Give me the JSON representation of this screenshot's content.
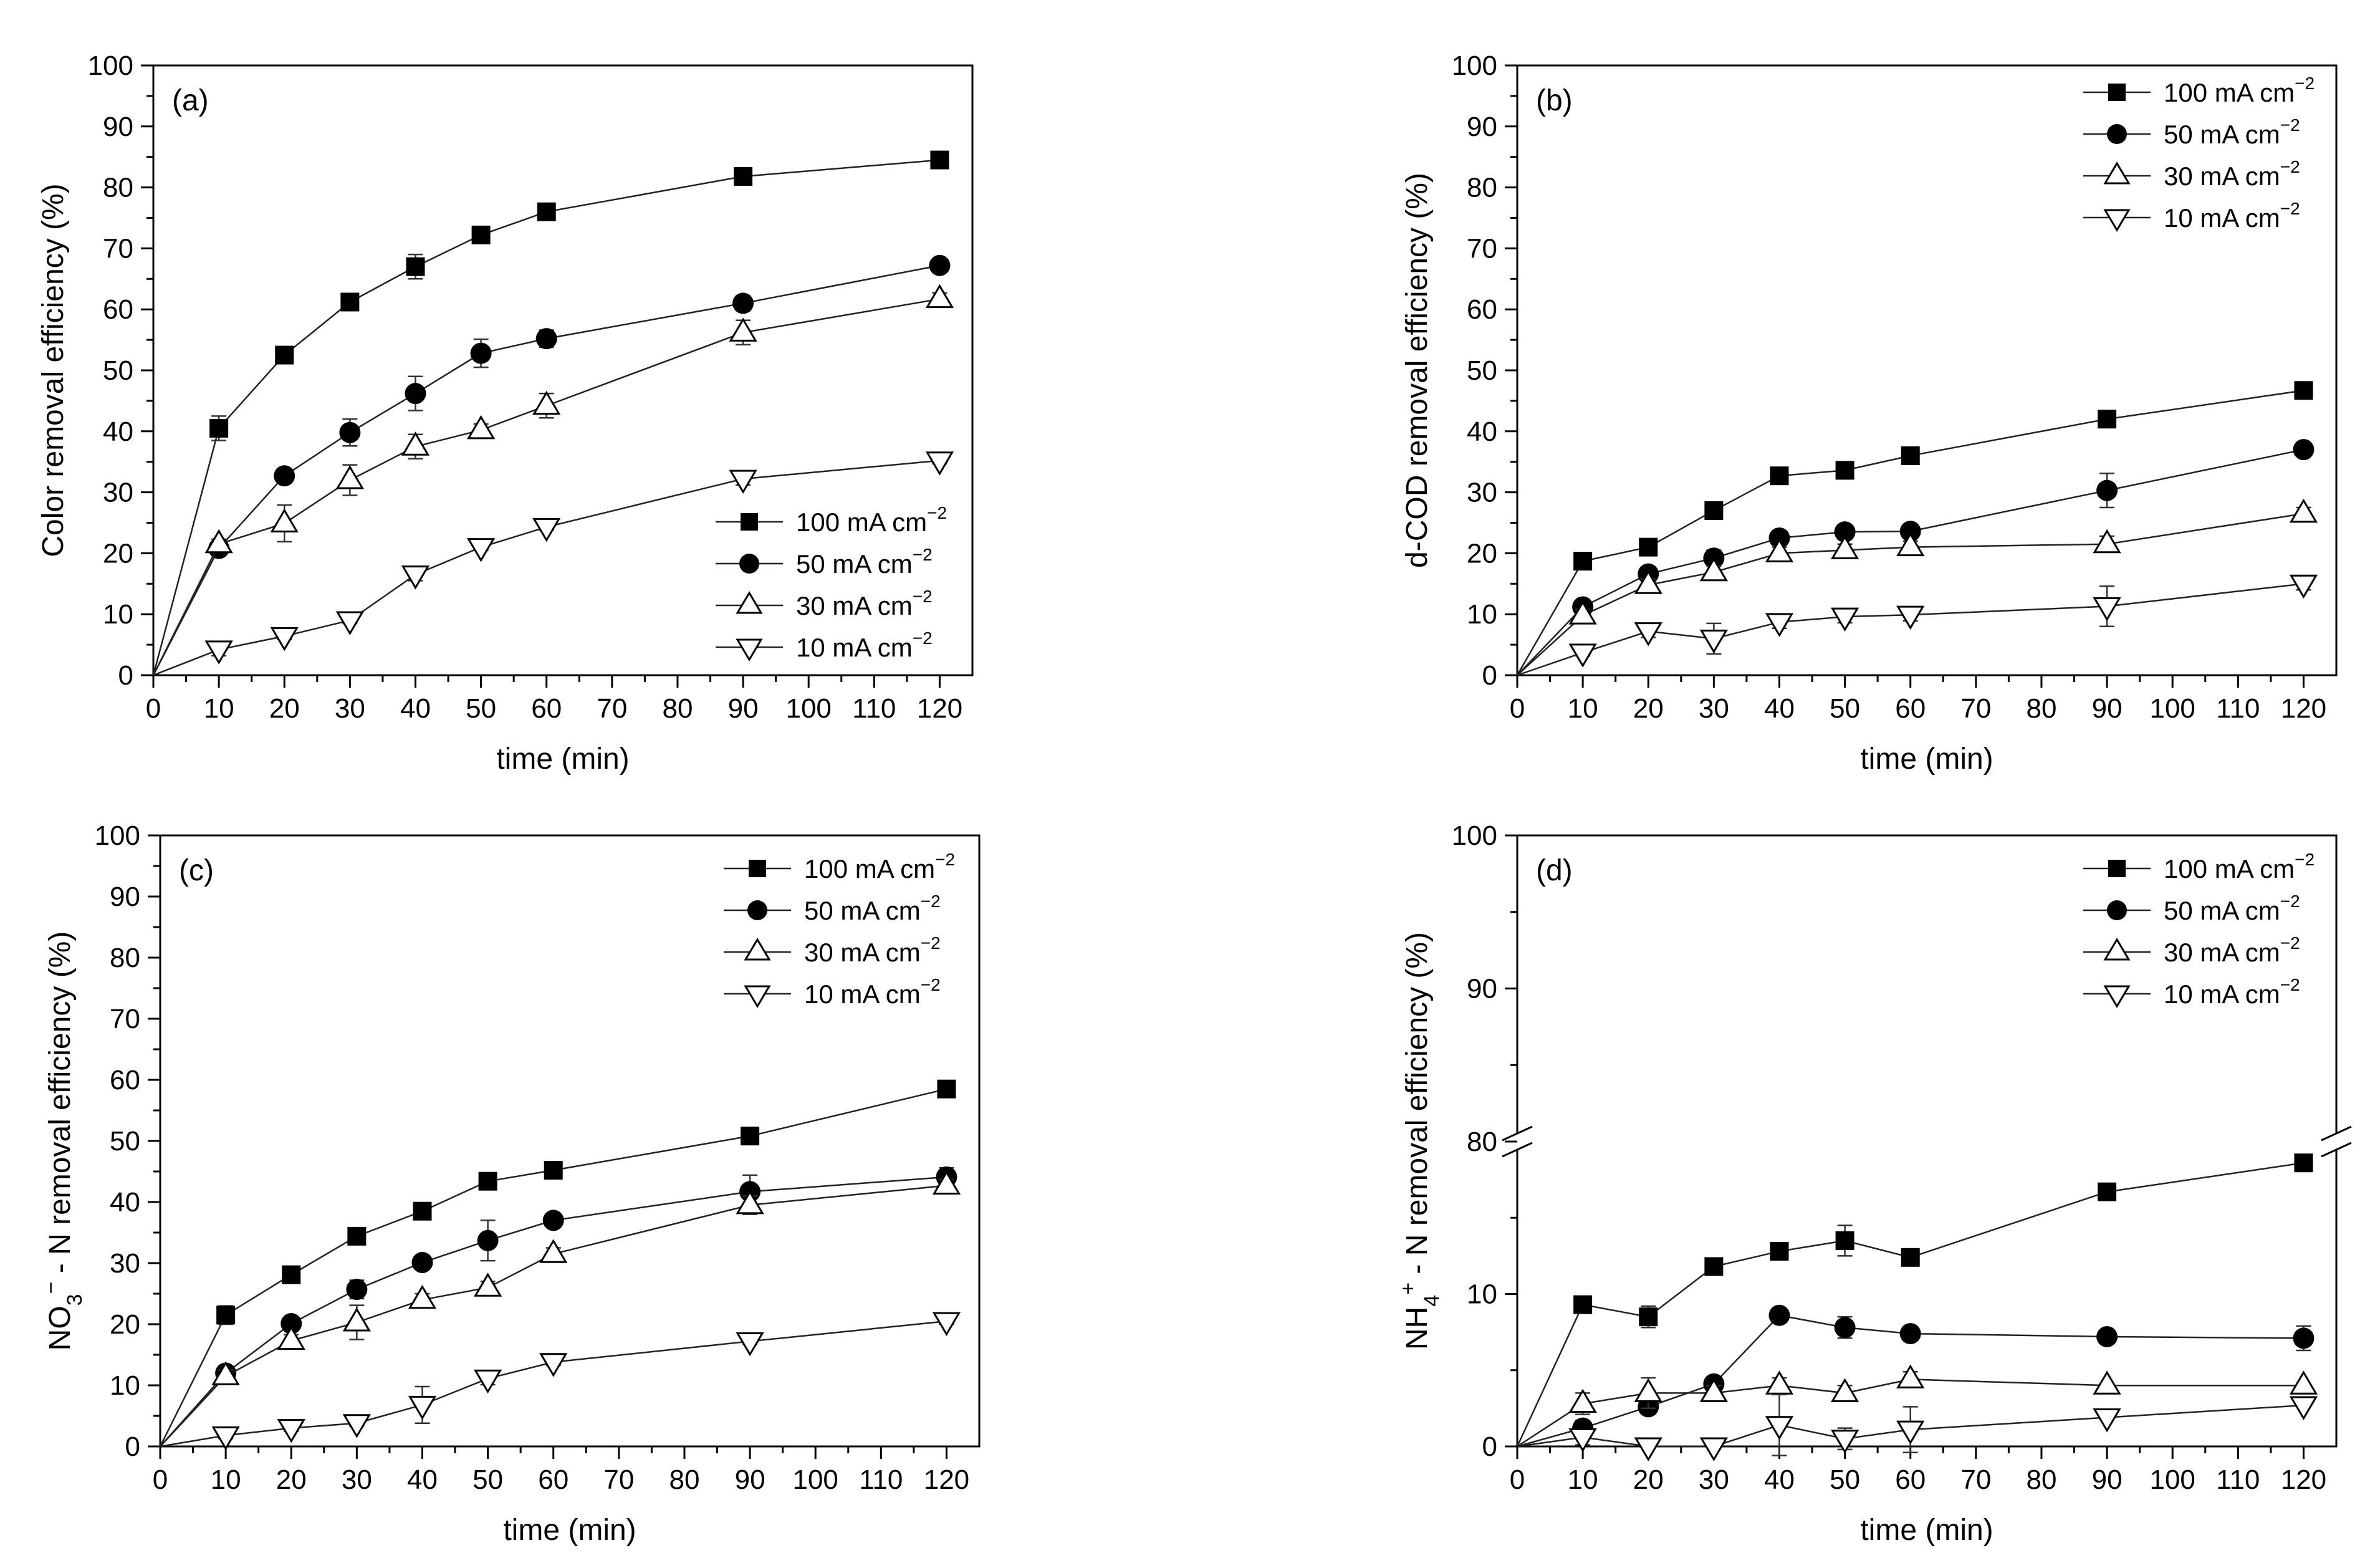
{
  "chart_data": [
    {
      "panel": "(a)",
      "type": "line",
      "title": "",
      "xlabel": "time (min)",
      "ylabel": "Color removal efficiency (%)",
      "xlim": [
        0,
        125
      ],
      "ylim": [
        0,
        100
      ],
      "xticks": [
        0,
        10,
        20,
        30,
        40,
        50,
        60,
        70,
        80,
        90,
        100,
        110,
        120
      ],
      "yticks": [
        0,
        10,
        20,
        30,
        40,
        50,
        60,
        70,
        80,
        90,
        100
      ],
      "legend": "bottom-right",
      "x": [
        0,
        10,
        20,
        30,
        40,
        50,
        60,
        90,
        120
      ],
      "series": [
        {
          "name": "100 mA cm",
          "marker": "square",
          "values": [
            0,
            40.5,
            52.5,
            61.2,
            67,
            72.2,
            76,
            81.8,
            84.5
          ],
          "err": [
            0,
            2,
            1.2,
            1,
            2,
            1,
            0.5,
            0.5,
            0.5
          ]
        },
        {
          "name": "50 mA cm",
          "marker": "circle",
          "values": [
            0,
            20.8,
            32.7,
            39.8,
            46.2,
            52.8,
            55.2,
            61,
            67.2
          ],
          "err": [
            0,
            0.6,
            0.8,
            2.2,
            2.8,
            2.3,
            1.4,
            1.2,
            0.5
          ]
        },
        {
          "name": "30 mA cm",
          "marker": "tri-up",
          "values": [
            0,
            21.5,
            24.9,
            32,
            37.5,
            40.2,
            44.2,
            56.2,
            61.7
          ],
          "err": [
            0,
            0.8,
            3,
            2.5,
            2,
            1,
            2,
            2,
            1
          ]
        },
        {
          "name": "10 mA cm",
          "marker": "tri-down",
          "values": [
            0,
            4.2,
            6.4,
            9,
            16.5,
            21,
            24.3,
            32.2,
            35.2
          ],
          "err": [
            0,
            1,
            0.5,
            0.5,
            1,
            0.5,
            0.5,
            1,
            0.5
          ]
        }
      ]
    },
    {
      "panel": "(b)",
      "type": "line",
      "title": "",
      "xlabel": "time (min)",
      "ylabel": "d-COD removal efficiency (%)",
      "xlim": [
        0,
        125
      ],
      "ylim": [
        0,
        100
      ],
      "xticks": [
        0,
        10,
        20,
        30,
        40,
        50,
        60,
        70,
        80,
        90,
        100,
        110,
        120
      ],
      "yticks": [
        0,
        10,
        20,
        30,
        40,
        50,
        60,
        70,
        80,
        90,
        100
      ],
      "legend": "top-right",
      "x": [
        0,
        10,
        20,
        30,
        40,
        50,
        60,
        90,
        120
      ],
      "series": [
        {
          "name": "100 mA cm",
          "marker": "square",
          "values": [
            0,
            18.7,
            21,
            27,
            32.7,
            33.6,
            36,
            42,
            46.7
          ],
          "err": [
            0,
            0.5,
            0.5,
            0.5,
            0.5,
            0.5,
            0.5,
            0.5,
            0.5
          ]
        },
        {
          "name": "50 mA cm",
          "marker": "circle",
          "values": [
            0,
            11.2,
            16.6,
            19.2,
            22.5,
            23.5,
            23.6,
            30.3,
            37
          ],
          "err": [
            0,
            0.5,
            1,
            1.3,
            1,
            1,
            1,
            2.8,
            0.5
          ]
        },
        {
          "name": "30 mA cm",
          "marker": "tri-up",
          "values": [
            0,
            9.8,
            14.8,
            16.9,
            20,
            20.5,
            21,
            21.5,
            26.5
          ],
          "err": [
            0,
            1,
            1,
            1,
            1,
            1,
            1,
            1.3,
            1
          ]
        },
        {
          "name": "10 mA cm",
          "marker": "tri-down",
          "values": [
            0,
            3.7,
            7.2,
            6,
            8.7,
            9.6,
            9.9,
            11.3,
            15
          ],
          "err": [
            0,
            0.5,
            1,
            2.5,
            1,
            1,
            1,
            3.3,
            1
          ]
        }
      ]
    },
    {
      "panel": "(c)",
      "type": "line",
      "title": "",
      "xlabel": "time (min)",
      "ylabel": "NO3 - N removal efficiency (%)",
      "xlim": [
        0,
        125
      ],
      "ylim": [
        0,
        100
      ],
      "xticks": [
        0,
        10,
        20,
        30,
        40,
        50,
        60,
        70,
        80,
        90,
        100,
        110,
        120
      ],
      "yticks": [
        0,
        10,
        20,
        30,
        40,
        50,
        60,
        70,
        80,
        90,
        100
      ],
      "legend": "top-right",
      "x": [
        0,
        10,
        20,
        30,
        40,
        50,
        60,
        90,
        120
      ],
      "series": [
        {
          "name": "100 mA cm",
          "marker": "square",
          "values": [
            0,
            21.5,
            28.1,
            34.4,
            38.5,
            43.4,
            45.2,
            50.8,
            58.5
          ],
          "err": [
            0,
            1.5,
            0.5,
            1,
            0.5,
            0.5,
            0.5,
            0.5,
            0.5
          ]
        },
        {
          "name": "50 mA cm",
          "marker": "circle",
          "values": [
            0,
            12,
            20.1,
            25.7,
            30.1,
            33.7,
            37,
            41.7,
            44.1
          ],
          "err": [
            0,
            0.5,
            0.5,
            1.5,
            0.5,
            3.3,
            1,
            2.7,
            1.5
          ]
        },
        {
          "name": "30 mA cm",
          "marker": "tri-up",
          "values": [
            0,
            11.5,
            17.3,
            20.3,
            24,
            26,
            31.5,
            39.5,
            42.7
          ],
          "err": [
            0,
            1,
            1,
            2.8,
            1,
            1,
            1,
            1.5,
            1
          ]
        },
        {
          "name": "10 mA cm",
          "marker": "tri-down",
          "values": [
            0,
            1.8,
            3,
            3.8,
            6.8,
            11.1,
            13.8,
            17.2,
            20.5
          ],
          "err": [
            0,
            0.5,
            0.5,
            0.5,
            3,
            1,
            0.5,
            0.5,
            0.5
          ]
        }
      ]
    },
    {
      "panel": "(d)",
      "type": "line",
      "title": "",
      "xlabel": "time (min)",
      "ylabel": "NH4 - N removal efficiency (%)",
      "xlim": [
        0,
        125
      ],
      "ylim": [
        0,
        100
      ],
      "axis_break": [
        20,
        80
      ],
      "xticks": [
        0,
        10,
        20,
        30,
        40,
        50,
        60,
        70,
        80,
        90,
        100,
        110,
        120
      ],
      "yticks": [
        0,
        10,
        80,
        90,
        100
      ],
      "legend": "top-right",
      "x": [
        0,
        10,
        20,
        30,
        40,
        50,
        60,
        90,
        120
      ],
      "series": [
        {
          "name": "100 mA cm",
          "marker": "square",
          "values": [
            0,
            9.3,
            8.5,
            11.8,
            12.8,
            13.5,
            12.4,
            16.7,
            18.6
          ],
          "err": [
            0,
            0.3,
            0.7,
            0.3,
            0.3,
            1,
            0.3,
            0.3,
            0.3
          ]
        },
        {
          "name": "50 mA cm",
          "marker": "circle",
          "values": [
            0,
            1.2,
            2.6,
            4.1,
            8.6,
            7.8,
            7.4,
            7.2,
            7.1
          ],
          "err": [
            0,
            0.5,
            0.3,
            0.3,
            0.3,
            0.7,
            0.3,
            0.3,
            0.8
          ]
        },
        {
          "name": "30 mA cm",
          "marker": "tri-up",
          "values": [
            0,
            2.8,
            3.5,
            3.5,
            4,
            3.5,
            4.4,
            4,
            4
          ],
          "err": [
            0,
            0.7,
            1,
            0.5,
            0.5,
            0.5,
            0.5,
            0.3,
            0.3
          ]
        },
        {
          "name": "10 mA cm",
          "marker": "tri-down",
          "values": [
            0,
            0.6,
            0,
            0,
            1.4,
            0.5,
            1.1,
            1.9,
            2.7
          ],
          "err": [
            0,
            0.5,
            0.3,
            0.3,
            2,
            0.7,
            1.5,
            0.3,
            0.3
          ]
        }
      ]
    }
  ]
}
